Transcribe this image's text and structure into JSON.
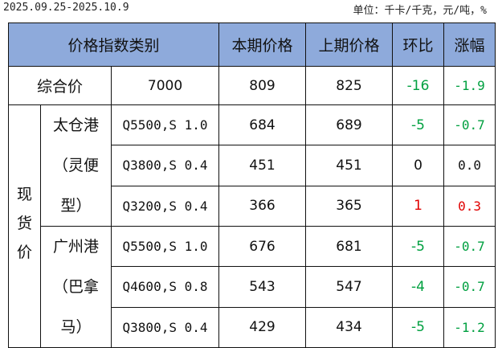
{
  "date_range": "2025.09.25-2025.10.9",
  "unit": "单位：千卡/千克，元/吨，%",
  "headers": [
    "价格指数类别",
    "本期价格",
    "上期价格",
    "环比",
    "涨幅"
  ],
  "composite": {
    "label": "综合价",
    "spec": "7000",
    "current": "809",
    "previous": "825",
    "change": "-16",
    "pct": "-1.9"
  },
  "spot_label": "现货价",
  "groups": [
    {
      "name_lines": [
        "太仓港",
        "（灵便",
        "型）"
      ],
      "rows": [
        {
          "spec": "Q5500,S 1.0",
          "current": "684",
          "previous": "689",
          "change": "-5",
          "pct": "-0.7"
        },
        {
          "spec": "Q3800,S 0.4",
          "current": "451",
          "previous": "451",
          "change": "0",
          "pct": "0.0"
        },
        {
          "spec": "Q3200,S 0.4",
          "current": "366",
          "previous": "365",
          "change": "1",
          "pct": "0.3"
        }
      ]
    },
    {
      "name_lines": [
        "广州港",
        "（巴拿",
        "马）"
      ],
      "rows": [
        {
          "spec": "Q5500,S 1.0",
          "current": "676",
          "previous": "681",
          "change": "-5",
          "pct": "-0.7"
        },
        {
          "spec": "Q4600,S 0.8",
          "current": "543",
          "previous": "547",
          "change": "-4",
          "pct": "-0.7"
        },
        {
          "spec": "Q3800,S 0.4",
          "current": "429",
          "previous": "434",
          "change": "-5",
          "pct": "-1.2"
        }
      ]
    }
  ],
  "colors": {
    "header_bg": "#8eaadb",
    "down": "#00a040",
    "up": "#e00000"
  }
}
